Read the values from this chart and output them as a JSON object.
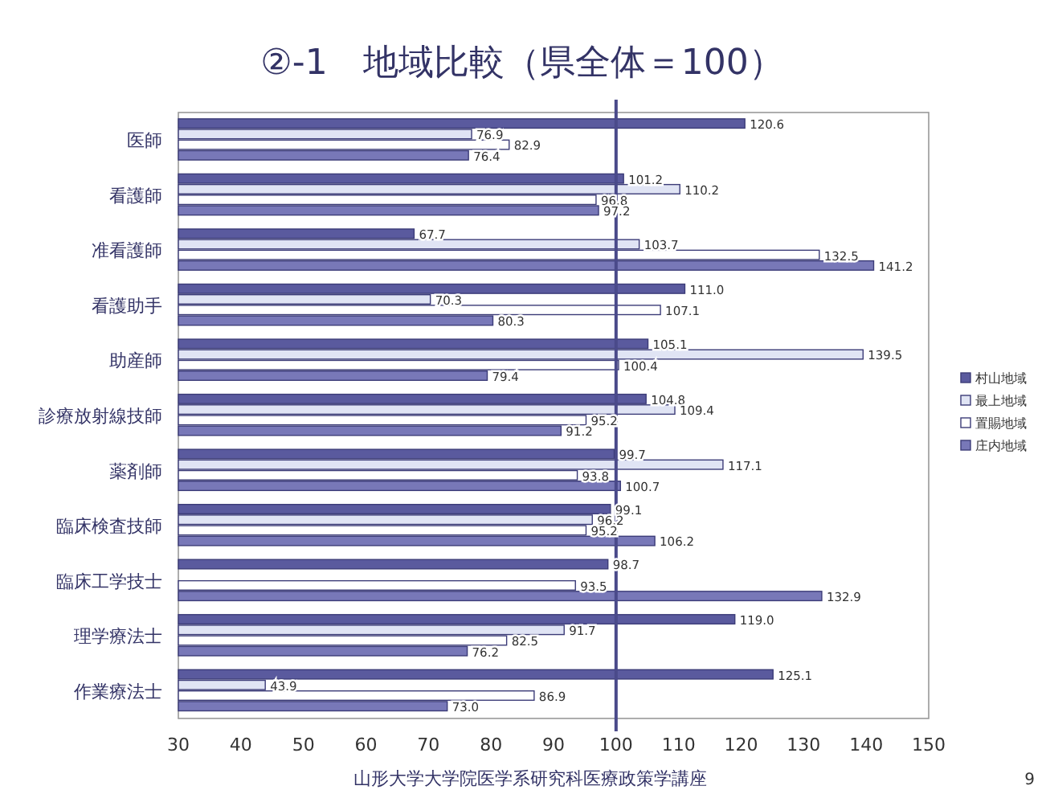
{
  "chart_data": {
    "type": "bar",
    "orientation": "horizontal",
    "title": "②-1　地域比較（県全体＝100）",
    "categories": [
      "医師",
      "看護師",
      "准看護師",
      "看護助手",
      "助産師",
      "診療放射線技師",
      "薬剤師",
      "臨床検査技師",
      "臨床工学技士",
      "理学療法士",
      "作業療法士"
    ],
    "series": [
      {
        "name": "村山地域",
        "color": "#5a5a9e",
        "values": [
          120.6,
          101.2,
          67.7,
          111.0,
          105.1,
          104.8,
          99.7,
          99.1,
          98.7,
          119.0,
          125.1
        ],
        "value_labels": [
          "120.6",
          "101.2",
          "67.7",
          "111.0",
          "105.1",
          "104.8",
          "99.7",
          "99.1",
          "98.7",
          "119.0",
          "125.1"
        ]
      },
      {
        "name": "最上地域",
        "color": "#e0e4f4",
        "values": [
          76.9,
          110.2,
          103.7,
          70.3,
          139.5,
          109.4,
          117.1,
          96.2,
          null,
          91.7,
          43.9
        ],
        "value_labels": [
          "76.9",
          "110.2",
          "103.7",
          "70.3",
          "139.5",
          "109.4",
          "117.1",
          "96.2",
          null,
          "91.7",
          "43.9"
        ]
      },
      {
        "name": "置賜地域",
        "color": "#ffffff",
        "values": [
          82.9,
          96.8,
          132.5,
          107.1,
          100.4,
          95.2,
          93.8,
          95.2,
          93.5,
          82.5,
          86.9
        ],
        "value_labels": [
          "82.9",
          "96.8",
          "132.5",
          "107.1",
          "100.4",
          "95.2",
          "93.8",
          "95.2",
          "93.5",
          "82.5",
          "86.9"
        ]
      },
      {
        "name": "庄内地域",
        "color": "#7878b8",
        "values": [
          76.4,
          97.2,
          141.2,
          80.3,
          79.4,
          91.2,
          100.7,
          106.2,
          132.9,
          76.2,
          73.0
        ],
        "value_labels": [
          "76.4",
          "97.2",
          "141.2",
          "80.3",
          "79.4",
          "91.2",
          "100.7",
          "106.2",
          "132.9",
          "76.2",
          "73.0"
        ]
      }
    ],
    "xlim": [
      30,
      150
    ],
    "xticks": [
      30,
      40,
      50,
      60,
      70,
      80,
      90,
      100,
      110,
      120,
      130,
      140,
      150
    ],
    "ref_lines": [
      {
        "axis": "x",
        "value": 100,
        "color": "#4a4a8a"
      }
    ],
    "legend": "right",
    "grid": false,
    "annotations": [
      "山形大学大学院医学系研究科医療政策学講座",
      "9"
    ]
  }
}
